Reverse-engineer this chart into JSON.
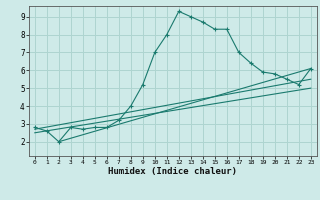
{
  "title": "",
  "xlabel": "Humidex (Indice chaleur)",
  "ylabel": "",
  "background_color": "#ceeae8",
  "grid_color": "#aed4d0",
  "line_color": "#1a7a6e",
  "xlim": [
    -0.5,
    23.5
  ],
  "ylim": [
    1.2,
    9.6
  ],
  "xticks": [
    0,
    1,
    2,
    3,
    4,
    5,
    6,
    7,
    8,
    9,
    10,
    11,
    12,
    13,
    14,
    15,
    16,
    17,
    18,
    19,
    20,
    21,
    22,
    23
  ],
  "yticks": [
    2,
    3,
    4,
    5,
    6,
    7,
    8,
    9
  ],
  "main_x": [
    0,
    1,
    2,
    3,
    4,
    5,
    6,
    7,
    8,
    9,
    10,
    11,
    12,
    13,
    14,
    15,
    16,
    17,
    18,
    19,
    20,
    21,
    22,
    23
  ],
  "main_y": [
    2.8,
    2.6,
    2.0,
    2.8,
    2.7,
    2.8,
    2.8,
    3.2,
    4.0,
    5.2,
    7.0,
    8.0,
    9.3,
    9.0,
    8.7,
    8.3,
    8.3,
    7.0,
    6.4,
    5.9,
    5.8,
    5.5,
    5.2,
    6.1
  ],
  "trend1_x": [
    0,
    23
  ],
  "trend1_y": [
    2.7,
    5.5
  ],
  "trend2_x": [
    0,
    23
  ],
  "trend2_y": [
    2.5,
    5.0
  ],
  "trend3_x": [
    2,
    23
  ],
  "trend3_y": [
    2.0,
    6.1
  ]
}
